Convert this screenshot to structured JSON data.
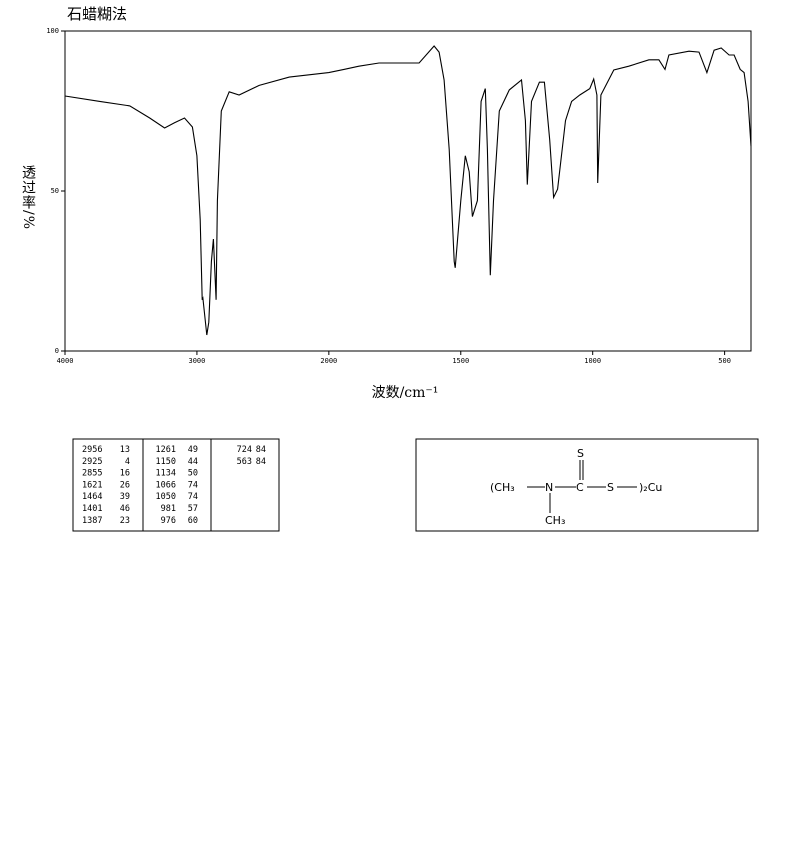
{
  "chart_data": {
    "type": "line",
    "title": "石蜡糊法",
    "xlabel": "波数/cm⁻¹",
    "ylabel": "透过率/%",
    "x": [
      4000,
      3736,
      3509,
      3358,
      3245,
      3170,
      3094,
      3034,
      3000,
      2975,
      2960,
      2955,
      2925,
      2910,
      2890,
      2875,
      2855,
      2845,
      2815,
      2755,
      2680,
      2528,
      2300,
      2000,
      1943,
      1886,
      1810,
      1658,
      1601,
      1582,
      1563,
      1544,
      1525,
      1521,
      1500,
      1483,
      1468,
      1456,
      1437,
      1423,
      1407,
      1399,
      1396,
      1388,
      1376,
      1354,
      1316,
      1270,
      1255,
      1248,
      1232,
      1202,
      1183,
      1163,
      1148,
      1133,
      1103,
      1080,
      1049,
      1011,
      996,
      984,
      981,
      969,
      920,
      863,
      787,
      749,
      726,
      711,
      635,
      597,
      567,
      540,
      513,
      483,
      464,
      441,
      426,
      411,
      400
    ],
    "series": [
      {
        "name": null,
        "color": "#000000",
        "values": [
          79.7,
          78,
          76.6,
          72.8,
          69.7,
          71.3,
          72.8,
          70,
          61,
          41,
          16,
          16.5,
          5,
          9,
          28,
          35,
          16,
          47,
          75,
          81,
          80,
          83,
          85.6,
          87,
          88,
          89,
          90,
          90,
          95.3,
          93.4,
          84.7,
          63,
          28,
          26,
          47,
          61,
          56,
          42,
          47,
          78,
          82,
          63,
          52,
          23.7,
          47,
          75,
          81.6,
          84.7,
          72,
          52,
          78,
          84,
          84,
          66,
          48,
          50.6,
          72,
          78,
          80,
          82,
          85,
          80,
          52.5,
          80,
          87.8,
          89,
          91,
          91,
          88,
          92.5,
          93.7,
          93.4,
          87,
          94,
          94.7,
          92.5,
          92.5,
          88,
          87,
          78,
          64
        ]
      }
    ],
    "xlim": [
      4000,
      400
    ],
    "ylim": [
      0,
      100
    ],
    "xticks": [
      4000,
      3000,
      2000,
      1500,
      1000,
      500
    ],
    "yticks": [
      0,
      50,
      100
    ]
  },
  "table": {
    "columns": [
      [
        [
          "2956",
          "13"
        ],
        [
          "2925",
          "4"
        ],
        [
          "2855",
          "16"
        ],
        [
          "1621",
          "26"
        ],
        [
          "1464",
          "39"
        ],
        [
          "1401",
          "46"
        ],
        [
          "1387",
          "23"
        ]
      ],
      [
        [
          "1261",
          "49"
        ],
        [
          "1150",
          "44"
        ],
        [
          "1134",
          "50"
        ],
        [
          "1066",
          "74"
        ],
        [
          "1050",
          "74"
        ],
        [
          "981",
          "57"
        ],
        [
          "976",
          "60"
        ]
      ],
      [
        [
          "724",
          "84"
        ],
        [
          "563",
          "84"
        ]
      ]
    ]
  },
  "structure": {
    "atoms": [
      "(CH₃",
      "N",
      "C",
      "S",
      "S",
      ")₂Cu",
      "CH₃"
    ]
  }
}
